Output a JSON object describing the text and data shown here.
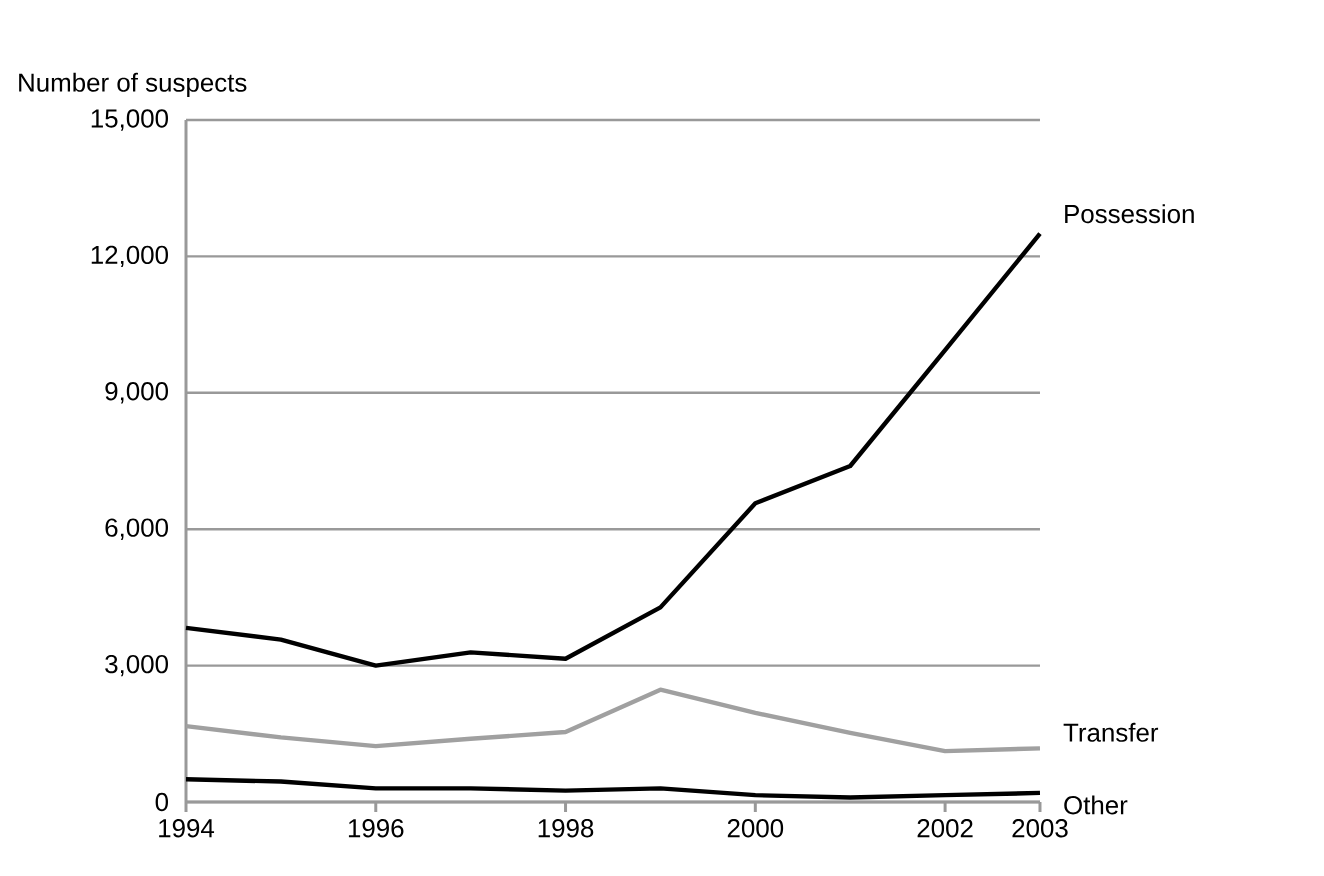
{
  "chart_data": {
    "type": "line",
    "ylabel": "Number of suspects",
    "x": [
      1994,
      1995,
      1996,
      1997,
      1998,
      1999,
      2000,
      2001,
      2002,
      2003
    ],
    "series": [
      {
        "name": "Possession",
        "color": "#000000",
        "values": [
          3830,
          3570,
          3000,
          3290,
          3150,
          4280,
          6570,
          7390,
          9940,
          12500
        ]
      },
      {
        "name": "Transfer",
        "color": "#a0a0a0",
        "values": [
          1670,
          1420,
          1230,
          1390,
          1540,
          2470,
          1960,
          1520,
          1120,
          1180
        ]
      },
      {
        "name": "Other",
        "color": "#000000",
        "values": [
          500,
          450,
          300,
          300,
          250,
          300,
          150,
          100,
          150,
          200
        ]
      }
    ],
    "xlim": [
      1994,
      2003
    ],
    "xticks": [
      1994,
      1996,
      1998,
      2000,
      2002,
      2003
    ],
    "ylim": [
      0,
      15000
    ],
    "yticks": [
      {
        "value": 0,
        "label": "0"
      },
      {
        "value": 3000,
        "label": "3,000"
      },
      {
        "value": 6000,
        "label": "6,000"
      },
      {
        "value": 9000,
        "label": "9,000"
      },
      {
        "value": 12000,
        "label": "12,000"
      },
      {
        "value": 15000,
        "label": "15,000"
      }
    ],
    "grid": "y",
    "marker": "none",
    "line_style": "solid"
  }
}
